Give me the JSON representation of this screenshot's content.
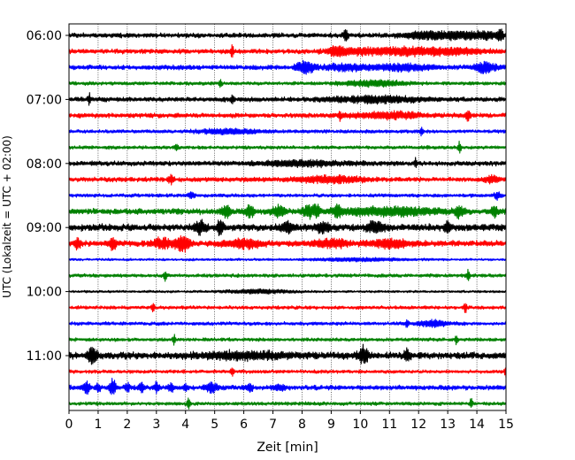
{
  "chart_data": {
    "type": "line",
    "title": "",
    "xlabel": "Zeit  [min]",
    "ylabel": "UTC (Lokalzeit = UTC + 02:00)",
    "xlim": [
      0,
      15
    ],
    "x_ticks": [
      0,
      1,
      2,
      3,
      4,
      5,
      6,
      7,
      8,
      9,
      10,
      11,
      12,
      13,
      14,
      15
    ],
    "x_tick_labels": [
      "0",
      "1",
      "2",
      "3",
      "4",
      "5",
      "6",
      "7",
      "8",
      "9",
      "10",
      "11",
      "12",
      "13",
      "14",
      "15"
    ],
    "y_tick_labels": [
      "06:00",
      "07:00",
      "08:00",
      "09:00",
      "10:00",
      "11:00"
    ],
    "y_tick_rows": [
      0,
      4,
      8,
      12,
      16,
      20
    ],
    "grid": {
      "x": true,
      "y": false,
      "style": "dotted"
    },
    "row_interval_minutes": 15,
    "color_cycle": [
      "#000000",
      "#ff0000",
      "#0000ff",
      "#008000"
    ],
    "colors": {
      "black": "#000000",
      "red": "#ff0000",
      "blue": "#0000ff",
      "green": "#008000"
    },
    "series": [
      {
        "start": "06:00",
        "color": "#000000",
        "noise": 2,
        "events": [
          [
            9.5,
            7,
            0.08
          ],
          [
            12.3,
            4,
            0.8
          ],
          [
            13.5,
            3,
            0.6
          ],
          [
            14.3,
            3,
            0.5
          ],
          [
            14.8,
            6,
            0.1
          ]
        ]
      },
      {
        "start": "06:15",
        "color": "#ff0000",
        "noise": 2,
        "events": [
          [
            5.6,
            6,
            0.05
          ],
          [
            9.2,
            4,
            0.25
          ],
          [
            10.0,
            3,
            1.0
          ],
          [
            11.5,
            3,
            0.8
          ],
          [
            13.0,
            3,
            1.2
          ]
        ]
      },
      {
        "start": "06:30",
        "color": "#0000ff",
        "noise": 2,
        "events": [
          [
            8.1,
            6,
            0.3
          ],
          [
            9.5,
            3,
            0.8
          ],
          [
            11.5,
            3,
            1.0
          ],
          [
            14.3,
            5,
            0.4
          ]
        ]
      },
      {
        "start": "06:45",
        "color": "#008000",
        "noise": 1.5,
        "events": [
          [
            5.2,
            5,
            0.05
          ],
          [
            10.5,
            3,
            1.0
          ]
        ]
      },
      {
        "start": "07:00",
        "color": "#000000",
        "noise": 2,
        "events": [
          [
            0.7,
            5,
            0.05
          ],
          [
            5.6,
            5,
            0.05
          ],
          [
            10.5,
            3,
            1.5
          ]
        ]
      },
      {
        "start": "07:15",
        "color": "#ff0000",
        "noise": 2,
        "events": [
          [
            9.3,
            5,
            0.05
          ],
          [
            13.7,
            4,
            0.1
          ],
          [
            11.0,
            3,
            1.2
          ]
        ]
      },
      {
        "start": "07:30",
        "color": "#0000ff",
        "noise": 1.5,
        "events": [
          [
            12.1,
            4,
            0.05
          ],
          [
            5.5,
            2.5,
            1.0
          ]
        ]
      },
      {
        "start": "07:45",
        "color": "#008000",
        "noise": 1.5,
        "events": [
          [
            3.7,
            4,
            0.05
          ],
          [
            13.4,
            7,
            0.05
          ]
        ]
      },
      {
        "start": "08:00",
        "color": "#000000",
        "noise": 2,
        "events": [
          [
            11.9,
            5,
            0.05
          ],
          [
            8.0,
            2.5,
            1.5
          ]
        ]
      },
      {
        "start": "08:15",
        "color": "#ff0000",
        "noise": 2,
        "events": [
          [
            3.5,
            4,
            0.1
          ],
          [
            14.5,
            4,
            0.2
          ],
          [
            9.0,
            3,
            1.2
          ]
        ]
      },
      {
        "start": "08:30",
        "color": "#0000ff",
        "noise": 1.5,
        "events": [
          [
            4.2,
            3,
            0.1
          ],
          [
            14.7,
            4,
            0.1
          ]
        ]
      },
      {
        "start": "08:45",
        "color": "#008000",
        "noise": 2.5,
        "events": [
          [
            5.4,
            6,
            0.15
          ],
          [
            6.2,
            6,
            0.15
          ],
          [
            7.2,
            6,
            0.2
          ],
          [
            8.2,
            6,
            0.2
          ],
          [
            8.5,
            7,
            0.1
          ],
          [
            9.2,
            5,
            0.15
          ],
          [
            13.4,
            6,
            0.15
          ],
          [
            14.6,
            6,
            0.1
          ],
          [
            11.0,
            4,
            1.5
          ]
        ]
      },
      {
        "start": "09:00",
        "color": "#000000",
        "noise": 3,
        "events": [
          [
            4.5,
            6,
            0.2
          ],
          [
            5.2,
            8,
            0.1
          ],
          [
            7.5,
            5,
            0.2
          ],
          [
            8.7,
            5,
            0.2
          ],
          [
            10.5,
            5,
            0.3
          ],
          [
            13.0,
            5,
            0.1
          ]
        ]
      },
      {
        "start": "09:15",
        "color": "#ff0000",
        "noise": 2.5,
        "events": [
          [
            0.3,
            5,
            0.1
          ],
          [
            1.5,
            7,
            0.1
          ],
          [
            3.2,
            5,
            0.3
          ],
          [
            3.9,
            8,
            0.25
          ],
          [
            6.0,
            4,
            0.6
          ],
          [
            9.0,
            4,
            0.6
          ],
          [
            11.0,
            4,
            0.6
          ]
        ]
      },
      {
        "start": "09:30",
        "color": "#0000ff",
        "noise": 1,
        "events": [
          [
            10.0,
            1.5,
            1.5
          ]
        ]
      },
      {
        "start": "09:45",
        "color": "#008000",
        "noise": 1.5,
        "events": [
          [
            3.3,
            5,
            0.05
          ],
          [
            13.7,
            7,
            0.05
          ]
        ]
      },
      {
        "start": "10:00",
        "color": "#000000",
        "noise": 1,
        "events": [
          [
            6.5,
            2,
            1.0
          ]
        ]
      },
      {
        "start": "10:15",
        "color": "#ff0000",
        "noise": 1.5,
        "events": [
          [
            2.9,
            5,
            0.05
          ],
          [
            13.6,
            7,
            0.05
          ]
        ]
      },
      {
        "start": "10:30",
        "color": "#0000ff",
        "noise": 1.5,
        "events": [
          [
            11.6,
            5,
            0.05
          ],
          [
            12.5,
            3,
            0.5
          ]
        ]
      },
      {
        "start": "10:45",
        "color": "#008000",
        "noise": 1.5,
        "events": [
          [
            3.6,
            5,
            0.05
          ],
          [
            13.3,
            5,
            0.05
          ]
        ]
      },
      {
        "start": "11:00",
        "color": "#000000",
        "noise": 3,
        "events": [
          [
            0.8,
            8,
            0.15
          ],
          [
            10.1,
            9,
            0.15
          ],
          [
            11.6,
            5,
            0.1
          ],
          [
            6.0,
            3,
            1.5
          ]
        ]
      },
      {
        "start": "11:15",
        "color": "#ff0000",
        "noise": 1.5,
        "events": [
          [
            5.6,
            5,
            0.05
          ],
          [
            15.0,
            5,
            0.05
          ]
        ]
      },
      {
        "start": "11:30",
        "color": "#0000ff",
        "noise": 2,
        "events": [
          [
            0.6,
            8,
            0.1
          ],
          [
            1.0,
            4,
            0.08
          ],
          [
            1.5,
            9,
            0.1
          ],
          [
            2.0,
            5,
            0.08
          ],
          [
            2.5,
            6,
            0.08
          ],
          [
            3.0,
            5,
            0.08
          ],
          [
            3.5,
            5,
            0.08
          ],
          [
            4.0,
            4,
            0.08
          ],
          [
            4.9,
            5,
            0.2
          ],
          [
            6.2,
            4,
            0.1
          ],
          [
            7.2,
            3,
            0.2
          ]
        ]
      },
      {
        "start": "11:45",
        "color": "#008000",
        "noise": 1.5,
        "events": [
          [
            4.1,
            6,
            0.05
          ],
          [
            13.8,
            5,
            0.05
          ]
        ]
      }
    ]
  }
}
